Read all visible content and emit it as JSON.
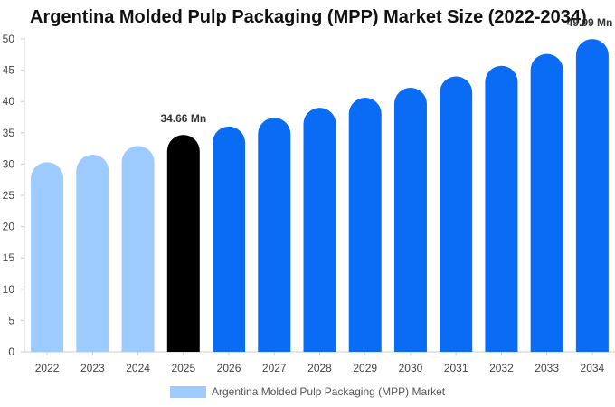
{
  "chart_data": {
    "type": "bar",
    "title": "Argentina Molded Pulp Packaging (MPP) Market Size (2022-2034)",
    "categories": [
      "2022",
      "2023",
      "2024",
      "2025",
      "2026",
      "2027",
      "2028",
      "2029",
      "2030",
      "2031",
      "2032",
      "2033",
      "2034"
    ],
    "series": [
      {
        "name": "Argentina Molded Pulp Packaging (MPP) Market",
        "values": [
          30.3,
          31.5,
          32.9,
          34.66,
          36.0,
          37.4,
          39.0,
          40.6,
          42.2,
          44.0,
          45.7,
          47.6,
          49.99
        ]
      }
    ],
    "bar_colors": [
      "#9ecbff",
      "#9ecbff",
      "#9ecbff",
      "#000000",
      "#0a6cf5",
      "#0a6cf5",
      "#0a6cf5",
      "#0a6cf5",
      "#0a6cf5",
      "#0a6cf5",
      "#0a6cf5",
      "#0a6cf5",
      "#0a6cf5"
    ],
    "data_labels": [
      {
        "index": 3,
        "text": "34.66 Mn"
      },
      {
        "index": 12,
        "text": "49.99 Mn"
      }
    ],
    "ylim": [
      0,
      50
    ],
    "yticks": [
      0,
      5,
      10,
      15,
      20,
      25,
      30,
      35,
      40,
      45,
      50
    ],
    "xlabel": "",
    "ylabel": "",
    "grid": false,
    "legend_position": "bottom"
  }
}
